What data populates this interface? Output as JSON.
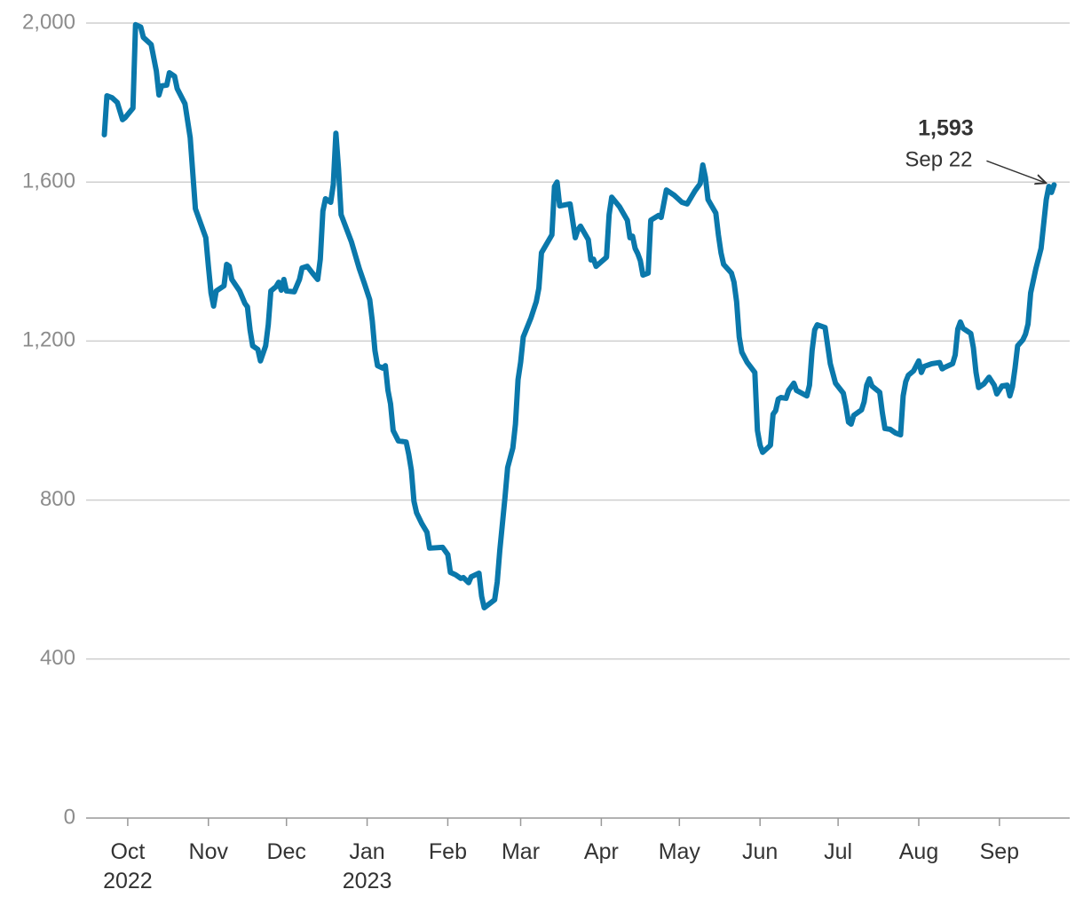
{
  "chart_data": {
    "type": "line",
    "color": "#0a78ab",
    "grid": true,
    "xlim": [
      "2022-09-15",
      "2023-09-28"
    ],
    "ylim": [
      0,
      2000
    ],
    "yticks": [
      {
        "value": 0,
        "label": "0"
      },
      {
        "value": 400,
        "label": "400"
      },
      {
        "value": 800,
        "label": "800"
      },
      {
        "value": 1200,
        "label": "1,200"
      },
      {
        "value": 1600,
        "label": "1,600"
      },
      {
        "value": 2000,
        "label": "2,000"
      }
    ],
    "xticks": [
      {
        "value": "2022-10-01",
        "label": "Oct\n2022"
      },
      {
        "value": "2022-11-01",
        "label": "Nov"
      },
      {
        "value": "2022-12-01",
        "label": "Dec"
      },
      {
        "value": "2023-01-01",
        "label": "Jan\n2023"
      },
      {
        "value": "2023-02-01",
        "label": "Feb"
      },
      {
        "value": "2023-03-01",
        "label": "Mar"
      },
      {
        "value": "2023-04-01",
        "label": "Apr"
      },
      {
        "value": "2023-05-01",
        "label": "May"
      },
      {
        "value": "2023-06-01",
        "label": "Jun"
      },
      {
        "value": "2023-07-01",
        "label": "Jul"
      },
      {
        "value": "2023-08-01",
        "label": "Aug"
      },
      {
        "value": "2023-09-01",
        "label": "Sep"
      }
    ],
    "annotation": {
      "x": "2023-09-22",
      "value": 1593,
      "value_label": "1,593",
      "date_label": "Sep 22"
    },
    "x": [
      "2022-09-22",
      "2022-09-23",
      "2022-09-25",
      "2022-09-27",
      "2022-09-29",
      "2022-09-30",
      "2022-10-03",
      "2022-10-04",
      "2022-10-06",
      "2022-10-07",
      "2022-10-10",
      "2022-10-12",
      "2022-10-13",
      "2022-10-14",
      "2022-10-16",
      "2022-10-17",
      "2022-10-19",
      "2022-10-20",
      "2022-10-23",
      "2022-10-25",
      "2022-10-27",
      "2022-10-31",
      "2022-11-01",
      "2022-11-02",
      "2022-11-03",
      "2022-11-04",
      "2022-11-07",
      "2022-11-08",
      "2022-11-09",
      "2022-11-10",
      "2022-11-13",
      "2022-11-15",
      "2022-11-16",
      "2022-11-17",
      "2022-11-18",
      "2022-11-20",
      "2022-11-21",
      "2022-11-23",
      "2022-11-24",
      "2022-11-25",
      "2022-11-27",
      "2022-11-28",
      "2022-11-29",
      "2022-11-30",
      "2022-12-01",
      "2022-12-04",
      "2022-12-06",
      "2022-12-07",
      "2022-12-09",
      "2022-12-11",
      "2022-12-13",
      "2022-12-14",
      "2022-12-15",
      "2022-12-16",
      "2022-12-18",
      "2022-12-19",
      "2022-12-20",
      "2022-12-21",
      "2022-12-22",
      "2022-12-26",
      "2022-12-29",
      "2022-12-31",
      "2023-01-02",
      "2023-01-03",
      "2023-01-04",
      "2023-01-05",
      "2023-01-07",
      "2023-01-08",
      "2023-01-09",
      "2023-01-10",
      "2023-01-11",
      "2023-01-13",
      "2023-01-16",
      "2023-01-17",
      "2023-01-18",
      "2023-01-19",
      "2023-01-20",
      "2023-01-22",
      "2023-01-24",
      "2023-01-25",
      "2023-01-30",
      "2023-02-01",
      "2023-02-02",
      "2023-02-04",
      "2023-02-06",
      "2023-02-07",
      "2023-02-09",
      "2023-02-10",
      "2023-02-13",
      "2023-02-14",
      "2023-02-15",
      "2023-02-19",
      "2023-02-20",
      "2023-02-21",
      "2023-02-23",
      "2023-02-24",
      "2023-02-26",
      "2023-02-27",
      "2023-02-28",
      "2023-03-01",
      "2023-03-02",
      "2023-03-05",
      "2023-03-07",
      "2023-03-08",
      "2023-03-09",
      "2023-03-13",
      "2023-03-14",
      "2023-03-15",
      "2023-03-16",
      "2023-03-20",
      "2023-03-22",
      "2023-03-23",
      "2023-03-24",
      "2023-03-27",
      "2023-03-28",
      "2023-03-29",
      "2023-03-30",
      "2023-04-03",
      "2023-04-04",
      "2023-04-05",
      "2023-04-08",
      "2023-04-11",
      "2023-04-12",
      "2023-04-13",
      "2023-04-14",
      "2023-04-15",
      "2023-04-16",
      "2023-04-17",
      "2023-04-19",
      "2023-04-20",
      "2023-04-23",
      "2023-04-24",
      "2023-04-26",
      "2023-04-29",
      "2023-05-02",
      "2023-05-04",
      "2023-05-07",
      "2023-05-09",
      "2023-05-10",
      "2023-05-11",
      "2023-05-12",
      "2023-05-15",
      "2023-05-16",
      "2023-05-17",
      "2023-05-18",
      "2023-05-21",
      "2023-05-22",
      "2023-05-23",
      "2023-05-24",
      "2023-05-25",
      "2023-05-27",
      "2023-05-30",
      "2023-05-31",
      "2023-06-01",
      "2023-06-02",
      "2023-06-05",
      "2023-06-06",
      "2023-06-07",
      "2023-06-08",
      "2023-06-09",
      "2023-06-11",
      "2023-06-12",
      "2023-06-14",
      "2023-06-15",
      "2023-06-17",
      "2023-06-19",
      "2023-06-20",
      "2023-06-21",
      "2023-06-22",
      "2023-06-23",
      "2023-06-26",
      "2023-06-28",
      "2023-06-30",
      "2023-07-03",
      "2023-07-04",
      "2023-07-05",
      "2023-07-06",
      "2023-07-07",
      "2023-07-10",
      "2023-07-11",
      "2023-07-12",
      "2023-07-13",
      "2023-07-14",
      "2023-07-17",
      "2023-07-18",
      "2023-07-19",
      "2023-07-21",
      "2023-07-23",
      "2023-07-25",
      "2023-07-26",
      "2023-07-27",
      "2023-07-28",
      "2023-07-30",
      "2023-08-01",
      "2023-08-02",
      "2023-08-03",
      "2023-08-06",
      "2023-08-09",
      "2023-08-10",
      "2023-08-11",
      "2023-08-14",
      "2023-08-15",
      "2023-08-16",
      "2023-08-17",
      "2023-08-18",
      "2023-08-21",
      "2023-08-22",
      "2023-08-23",
      "2023-08-24",
      "2023-08-26",
      "2023-08-28",
      "2023-08-30",
      "2023-08-31",
      "2023-09-02",
      "2023-09-04",
      "2023-09-05",
      "2023-09-06",
      "2023-09-07",
      "2023-09-08",
      "2023-09-10",
      "2023-09-11",
      "2023-09-12",
      "2023-09-13",
      "2023-09-15",
      "2023-09-17",
      "2023-09-19",
      "2023-09-20",
      "2023-09-21",
      "2023-09-22"
    ],
    "values": [
      1719,
      1817,
      1812,
      1800,
      1757,
      1762,
      1786,
      1996,
      1990,
      1964,
      1946,
      1879,
      1819,
      1842,
      1844,
      1875,
      1866,
      1835,
      1797,
      1712,
      1533,
      1460,
      1388,
      1321,
      1288,
      1326,
      1339,
      1393,
      1388,
      1355,
      1326,
      1295,
      1286,
      1228,
      1188,
      1179,
      1150,
      1188,
      1241,
      1326,
      1337,
      1348,
      1328,
      1355,
      1326,
      1324,
      1355,
      1384,
      1388,
      1371,
      1355,
      1406,
      1527,
      1558,
      1549,
      1594,
      1723,
      1634,
      1518,
      1449,
      1382,
      1344,
      1304,
      1250,
      1176,
      1138,
      1132,
      1138,
      1076,
      1042,
      975,
      949,
      946,
      915,
      875,
      797,
      768,
      741,
      719,
      679,
      681,
      663,
      618,
      612,
      603,
      605,
      592,
      607,
      616,
      558,
      529,
      549,
      594,
      674,
      808,
      882,
      931,
      991,
      1103,
      1147,
      1210,
      1259,
      1299,
      1333,
      1422,
      1467,
      1589,
      1600,
      1540,
      1545,
      1460,
      1480,
      1489,
      1455,
      1404,
      1406,
      1388,
      1411,
      1518,
      1562,
      1538,
      1504,
      1460,
      1464,
      1433,
      1420,
      1402,
      1366,
      1371,
      1504,
      1516,
      1511,
      1580,
      1567,
      1549,
      1545,
      1578,
      1596,
      1643,
      1612,
      1556,
      1522,
      1467,
      1422,
      1393,
      1371,
      1348,
      1299,
      1210,
      1172,
      1147,
      1121,
      975,
      938,
      920,
      938,
      1016,
      1025,
      1054,
      1058,
      1056,
      1076,
      1094,
      1076,
      1069,
      1062,
      1089,
      1176,
      1228,
      1241,
      1234,
      1143,
      1094,
      1069,
      1036,
      996,
      991,
      1013,
      1027,
      1047,
      1089,
      1105,
      1087,
      1071,
      1020,
      980,
      978,
      969,
      964,
      1062,
      1098,
      1114,
      1125,
      1150,
      1121,
      1136,
      1143,
      1146,
      1130,
      1134,
      1143,
      1165,
      1230,
      1248,
      1232,
      1219,
      1183,
      1121,
      1083,
      1092,
      1109,
      1089,
      1067,
      1087,
      1089,
      1062,
      1085,
      1132,
      1188,
      1203,
      1217,
      1243,
      1321,
      1382,
      1433,
      1556,
      1589,
      1574,
      1593
    ]
  }
}
